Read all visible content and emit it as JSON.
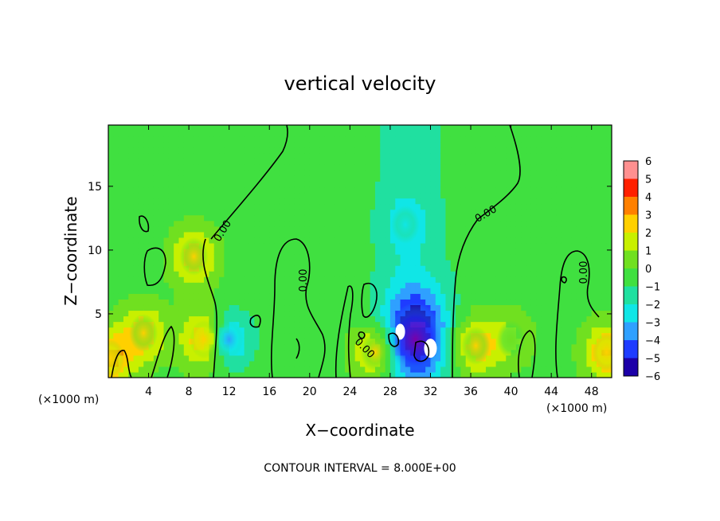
{
  "chart_data": {
    "type": "heatmap",
    "title": "vertical velocity",
    "xlabel": "X−coordinate",
    "ylabel": "Z−coordinate",
    "x_unit": "(×1000 m)",
    "y_unit": "(×1000 m)",
    "xlim": [
      0,
      50
    ],
    "ylim": [
      0,
      19.8
    ],
    "x_ticks": [
      "4",
      "8",
      "12",
      "16",
      "20",
      "24",
      "28",
      "32",
      "36",
      "40",
      "44",
      "48"
    ],
    "y_ticks": [
      "5",
      "10",
      "15"
    ],
    "colorbar": {
      "range": [
        -6,
        6
      ],
      "ticks": [
        "6",
        "5",
        "4",
        "3",
        "2",
        "1",
        "0",
        "−1",
        "−2",
        "−3",
        "−4",
        "−5",
        "−6"
      ]
    },
    "contour_label": "0.00",
    "contour_interval_text": "CONTOUR INTERVAL = 8.000E+00",
    "features": [
      {
        "x": 30.5,
        "z": 3.0,
        "w": -5.5
      },
      {
        "x": 36.5,
        "z": 2.5,
        "w": 3.0
      },
      {
        "x": 9.5,
        "z": 3.0,
        "w": 3.5
      },
      {
        "x": 8.5,
        "z": 9.5,
        "w": 3.0
      },
      {
        "x": 3.5,
        "z": 3.5,
        "w": 3.0
      },
      {
        "x": 49.5,
        "z": 2.0,
        "w": 3.5
      },
      {
        "x": 12.0,
        "z": 3.0,
        "w": -3.0
      },
      {
        "x": 26.5,
        "z": 2.0,
        "w": 3.0
      },
      {
        "x": 0.2,
        "z": 1.5,
        "w": 3.5
      },
      {
        "x": 29.5,
        "z": 12.0,
        "w": -1.5
      },
      {
        "x": 40.0,
        "z": 3.0,
        "w": 1.5
      }
    ]
  }
}
